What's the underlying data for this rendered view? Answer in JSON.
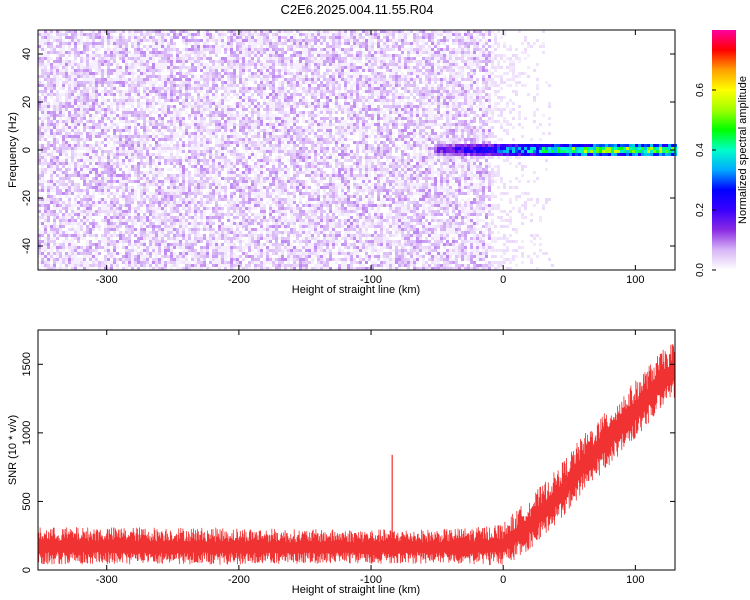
{
  "title": "C2E6.2025.004.11.55.R04",
  "chart_data": [
    {
      "type": "heatmap",
      "xlabel": "Height of straight line (km)",
      "ylabel": "Frequency (Hz)",
      "xlim": [
        -352,
        130
      ],
      "ylim": [
        -50,
        50
      ],
      "x_ticks": [
        -300,
        -200,
        -100,
        0,
        100
      ],
      "y_ticks": [
        -40,
        -20,
        0,
        20,
        40
      ],
      "grid": false,
      "colorbar": {
        "label": "Normalized spectral amplitude",
        "range": [
          0.0,
          0.8
        ],
        "ticks": [
          0.0,
          0.2,
          0.4,
          0.6
        ],
        "colormap": [
          "#ffffff",
          "#d8b6f7",
          "#8a2be2",
          "#3a00ff",
          "#0000ff",
          "#00aaff",
          "#00ffc8",
          "#00ff00",
          "#a0ff00",
          "#ffff00",
          "#ffa000",
          "#ff0000",
          "#ff00a0"
        ]
      },
      "features": [
        {
          "name": "noise",
          "x_range": [
            -352,
            -10
          ],
          "freq_range": [
            -50,
            50
          ],
          "amplitude": 0.06
        },
        {
          "name": "fade",
          "x_range": [
            -10,
            40
          ],
          "freq_range": [
            -50,
            50
          ],
          "amplitude": 0.02
        },
        {
          "name": "carrier",
          "x_range": [
            -52,
            130
          ],
          "freq_center": 0,
          "freq_halfwidth": 2,
          "amplitude": [
            0.15,
            0.55
          ]
        }
      ]
    },
    {
      "type": "line",
      "xlabel": "Height of straight line (km)",
      "ylabel": "SNR (10 * v/v)",
      "xlim": [
        -352,
        130
      ],
      "ylim": [
        0,
        1750
      ],
      "x_ticks": [
        -300,
        -200,
        -100,
        0,
        100
      ],
      "y_ticks": [
        0,
        500,
        1000,
        1500
      ],
      "color": "#f03232",
      "grid": false,
      "series": [
        {
          "x": [
            -352,
            -300,
            -250,
            -200,
            -150,
            -100,
            -80,
            -50,
            -20,
            0,
            10,
            20,
            40,
            60,
            80,
            100,
            120,
            130
          ],
          "y": [
            170,
            170,
            170,
            165,
            165,
            165,
            165,
            165,
            170,
            180,
            250,
            330,
            520,
            760,
            960,
            1160,
            1380,
            1450
          ],
          "spread": [
            130,
            130,
            130,
            130,
            120,
            120,
            120,
            120,
            130,
            150,
            170,
            180,
            190,
            200,
            200,
            200,
            200,
            200
          ]
        }
      ],
      "spikes": [
        {
          "x": -84,
          "y": 840
        }
      ]
    }
  ]
}
